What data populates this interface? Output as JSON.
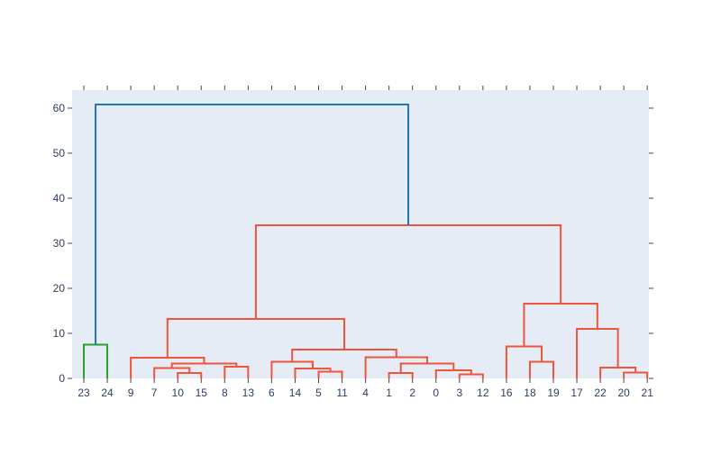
{
  "chart_data": {
    "type": "dendrogram",
    "title": "",
    "xlabel": "",
    "ylabel": "",
    "ylim": [
      0,
      64
    ],
    "y_ticks": [
      0,
      10,
      20,
      30,
      40,
      50,
      60
    ],
    "leaf_order": [
      "23",
      "24",
      "9",
      "7",
      "10",
      "15",
      "8",
      "13",
      "6",
      "14",
      "5",
      "11",
      "4",
      "1",
      "2",
      "0",
      "3",
      "12",
      "16",
      "18",
      "19",
      "17",
      "22",
      "20",
      "21"
    ],
    "colors": {
      "plot_bg": "#e5ecf6",
      "root": "#1f77b4",
      "cluster_a": "#2ca02c",
      "cluster_b": "#ef553b",
      "text": "#2a3f5f"
    },
    "merges": [
      {
        "left": "10",
        "right": "15",
        "height": 1.2,
        "color": "cluster_b"
      },
      {
        "left": "7",
        "right": "10+15",
        "height": 2.3,
        "color": "cluster_b"
      },
      {
        "left": "8",
        "right": "13",
        "height": 2.6,
        "color": "cluster_b"
      },
      {
        "left": "7+10+15",
        "right": "8+13",
        "height": 3.3,
        "color": "cluster_b"
      },
      {
        "left": "9",
        "right": "7+10+15+8+13",
        "height": 4.6,
        "color": "cluster_b"
      },
      {
        "left": "5",
        "right": "11",
        "height": 1.5,
        "color": "cluster_b"
      },
      {
        "left": "14",
        "right": "5+11",
        "height": 2.2,
        "color": "cluster_b"
      },
      {
        "left": "6",
        "right": "14+5+11",
        "height": 3.7,
        "color": "cluster_b"
      },
      {
        "left": "1",
        "right": "2",
        "height": 1.2,
        "color": "cluster_b"
      },
      {
        "left": "3",
        "right": "12",
        "height": 0.9,
        "color": "cluster_b"
      },
      {
        "left": "0",
        "right": "3+12",
        "height": 1.8,
        "color": "cluster_b"
      },
      {
        "left": "1+2",
        "right": "0+3+12",
        "height": 3.3,
        "color": "cluster_b"
      },
      {
        "left": "4",
        "right": "1+2+0+3+12",
        "height": 4.7,
        "color": "cluster_b"
      },
      {
        "left": "6+14+5+11",
        "right": "4+1+2+0+3+12",
        "height": 6.4,
        "color": "cluster_b"
      },
      {
        "left": "9+7+10+15+8+13",
        "right": "6+14+5+11+4+1+2+0+3+12",
        "height": 13.2,
        "color": "cluster_b"
      },
      {
        "left": "18",
        "right": "19",
        "height": 3.7,
        "color": "cluster_b"
      },
      {
        "left": "16",
        "right": "18+19",
        "height": 7.1,
        "color": "cluster_b"
      },
      {
        "left": "20",
        "right": "21",
        "height": 1.3,
        "color": "cluster_b"
      },
      {
        "left": "22",
        "right": "20+21",
        "height": 2.4,
        "color": "cluster_b"
      },
      {
        "left": "17",
        "right": "22+20+21",
        "height": 11.0,
        "color": "cluster_b"
      },
      {
        "left": "16+18+19",
        "right": "17+22+20+21",
        "height": 16.6,
        "color": "cluster_b"
      },
      {
        "left": "left_group",
        "right": "right_group",
        "height": 34.0,
        "color": "cluster_b"
      },
      {
        "left": "23",
        "right": "24",
        "height": 7.5,
        "color": "cluster_a"
      },
      {
        "left": "23+24",
        "right": "rest",
        "height": 60.8,
        "color": "root"
      }
    ]
  }
}
